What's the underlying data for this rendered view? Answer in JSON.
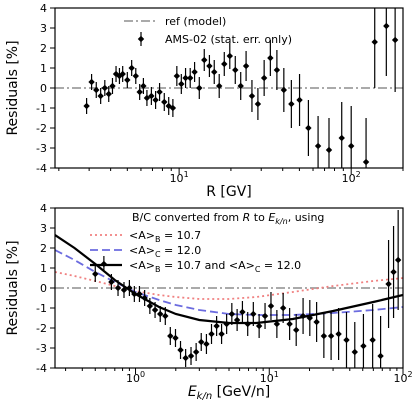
{
  "chart_data": [
    {
      "type": "scatter",
      "xlabel": "R [GV]",
      "ylabel": "Residuals [%]",
      "xscale": "log",
      "xlim": [
        1.9,
        200
      ],
      "ylim": [
        -4,
        4
      ],
      "xticks": [
        {
          "v": 10,
          "label": "10",
          "sup": "1"
        },
        {
          "v": 100,
          "label": "10",
          "sup": "2"
        }
      ],
      "yticks": [
        -4,
        -3,
        -2,
        -1,
        0,
        1,
        2,
        3,
        4
      ],
      "legend_position": "top-center",
      "reference_line": {
        "name": "ref (model)",
        "y": 0,
        "color": "#aaaaaa",
        "style": "dash-dot"
      },
      "series": [
        {
          "name": "AMS-02 (stat. err. only)",
          "color": "#000000",
          "points": [
            [
              2.9,
              -0.9,
              0.4
            ],
            [
              3.1,
              0.3,
              0.4
            ],
            [
              3.3,
              -0.1,
              0.4
            ],
            [
              3.5,
              -0.4,
              0.4
            ],
            [
              3.7,
              0.0,
              0.4
            ],
            [
              3.9,
              -0.3,
              0.4
            ],
            [
              4.1,
              0.1,
              0.4
            ],
            [
              4.3,
              0.7,
              0.4
            ],
            [
              4.5,
              0.6,
              0.4
            ],
            [
              4.7,
              0.7,
              0.4
            ],
            [
              5.0,
              0.4,
              0.4
            ],
            [
              5.3,
              1.0,
              0.4
            ],
            [
              5.6,
              0.6,
              0.4
            ],
            [
              5.9,
              -0.2,
              0.4
            ],
            [
              6.2,
              0.1,
              0.4
            ],
            [
              6.5,
              -0.5,
              0.4
            ],
            [
              6.9,
              -0.4,
              0.45
            ],
            [
              7.3,
              -0.6,
              0.45
            ],
            [
              7.7,
              -0.2,
              0.45
            ],
            [
              8.2,
              -0.7,
              0.45
            ],
            [
              8.7,
              -0.9,
              0.45
            ],
            [
              9.2,
              -1.0,
              0.45
            ],
            [
              9.7,
              0.6,
              0.5
            ],
            [
              10.3,
              0.2,
              0.5
            ],
            [
              10.9,
              0.5,
              0.5
            ],
            [
              11.6,
              0.5,
              0.5
            ],
            [
              12.3,
              0.8,
              0.5
            ],
            [
              13.1,
              0.0,
              0.55
            ],
            [
              14.0,
              1.4,
              0.55
            ],
            [
              15.0,
              1.1,
              0.55
            ],
            [
              16.0,
              0.8,
              0.6
            ],
            [
              17.1,
              0.1,
              0.6
            ],
            [
              18.3,
              1.2,
              0.6
            ],
            [
              19.7,
              1.6,
              0.65
            ],
            [
              21.2,
              0.9,
              0.7
            ],
            [
              22.8,
              0.1,
              0.7
            ],
            [
              24.5,
              1.1,
              0.75
            ],
            [
              26.5,
              -0.4,
              0.8
            ],
            [
              28.7,
              -0.8,
              0.8
            ],
            [
              31.2,
              0.5,
              0.9
            ],
            [
              33.9,
              1.5,
              0.9
            ],
            [
              37.0,
              0.9,
              1.0
            ],
            [
              40.6,
              -0.1,
              1.1
            ],
            [
              44.9,
              -0.8,
              1.2
            ],
            [
              50.1,
              -0.6,
              1.3
            ],
            [
              56.4,
              -2.0,
              1.4
            ],
            [
              64.2,
              -2.9,
              1.5
            ],
            [
              74.3,
              -3.1,
              1.6
            ],
            [
              88.1,
              -2.5,
              1.8
            ],
            [
              100.0,
              -2.9,
              2.0
            ],
            [
              122.0,
              -3.7,
              2.2
            ],
            [
              137.0,
              2.3,
              2.3
            ],
            [
              160.0,
              3.1,
              2.5
            ],
            [
              180.0,
              2.4,
              2.6
            ]
          ]
        }
      ]
    },
    {
      "type": "line",
      "title": "B/C converted from R to E_k/n, using",
      "xlabel": "E_k/n [GeV/n]",
      "ylabel": "Residuals [%]",
      "xscale": "log",
      "xlim": [
        0.25,
        100
      ],
      "ylim": [
        -4,
        4
      ],
      "xticks": [
        {
          "v": 1,
          "label": "10",
          "sup": "0"
        },
        {
          "v": 10,
          "label": "10",
          "sup": "1"
        },
        {
          "v": 100,
          "label": "10",
          "sup": "2"
        }
      ],
      "yticks": [
        -4,
        -3,
        -2,
        -1,
        0,
        1,
        2,
        3,
        4
      ],
      "legend_position": "top-center",
      "reference_line": {
        "y": 0,
        "color": "#aaaaaa",
        "style": "dash-dot"
      },
      "series": [
        {
          "name": "<A>_B = 10.7",
          "color": "#f08080",
          "style": "dotted",
          "points": [
            [
              0.25,
              0.8
            ],
            [
              0.35,
              0.6
            ],
            [
              0.5,
              0.35
            ],
            [
              0.7,
              0.1
            ],
            [
              1.0,
              -0.15
            ],
            [
              1.5,
              -0.35
            ],
            [
              2.0,
              -0.45
            ],
            [
              3.0,
              -0.55
            ],
            [
              5.0,
              -0.55
            ],
            [
              8.0,
              -0.45
            ],
            [
              15.0,
              -0.2
            ],
            [
              30.0,
              0.1
            ],
            [
              60.0,
              0.35
            ],
            [
              100.0,
              0.5
            ]
          ]
        },
        {
          "name": "<A>_C = 12.0",
          "color": "#6b6bdf",
          "style": "dashed",
          "points": [
            [
              0.25,
              1.9
            ],
            [
              0.35,
              1.4
            ],
            [
              0.5,
              0.8
            ],
            [
              0.7,
              0.3
            ],
            [
              1.0,
              -0.2
            ],
            [
              1.5,
              -0.6
            ],
            [
              2.0,
              -0.85
            ],
            [
              3.0,
              -1.1
            ],
            [
              5.0,
              -1.3
            ],
            [
              8.0,
              -1.35
            ],
            [
              15.0,
              -1.35
            ],
            [
              30.0,
              -1.25
            ],
            [
              60.0,
              -1.1
            ],
            [
              100.0,
              -0.95
            ]
          ]
        },
        {
          "name": "<A>_B = 10.7 and <A>_C = 12.0",
          "color": "#000000",
          "style": "solid",
          "points": [
            [
              0.25,
              2.65
            ],
            [
              0.35,
              2.0
            ],
            [
              0.5,
              1.2
            ],
            [
              0.7,
              0.4
            ],
            [
              1.0,
              -0.3
            ],
            [
              1.5,
              -0.95
            ],
            [
              2.0,
              -1.3
            ],
            [
              3.0,
              -1.6
            ],
            [
              5.0,
              -1.75
            ],
            [
              8.0,
              -1.75
            ],
            [
              15.0,
              -1.55
            ],
            [
              30.0,
              -1.15
            ],
            [
              60.0,
              -0.7
            ],
            [
              100.0,
              -0.35
            ]
          ]
        }
      ],
      "points": [
        [
          0.5,
          0.7,
          0.4
        ],
        [
          0.58,
          1.2,
          0.4
        ],
        [
          0.66,
          0.3,
          0.4
        ],
        [
          0.74,
          0.0,
          0.4
        ],
        [
          0.82,
          -0.1,
          0.4
        ],
        [
          0.9,
          0.0,
          0.4
        ],
        [
          0.98,
          -0.3,
          0.4
        ],
        [
          1.07,
          -0.3,
          0.4
        ],
        [
          1.17,
          -0.5,
          0.4
        ],
        [
          1.28,
          -0.9,
          0.4
        ],
        [
          1.4,
          -1.1,
          0.4
        ],
        [
          1.53,
          -1.3,
          0.4
        ],
        [
          1.67,
          -1.4,
          0.45
        ],
        [
          1.82,
          -2.4,
          0.45
        ],
        [
          1.99,
          -2.5,
          0.45
        ],
        [
          2.17,
          -3.1,
          0.45
        ],
        [
          2.37,
          -3.5,
          0.45
        ],
        [
          2.6,
          -3.4,
          0.45
        ],
        [
          2.84,
          -3.2,
          0.45
        ],
        [
          3.1,
          -2.7,
          0.45
        ],
        [
          3.39,
          -2.8,
          0.5
        ],
        [
          3.7,
          -2.3,
          0.5
        ],
        [
          4.04,
          -1.9,
          0.5
        ],
        [
          4.4,
          -2.3,
          0.5
        ],
        [
          4.8,
          -1.8,
          0.5
        ],
        [
          5.25,
          -1.3,
          0.55
        ],
        [
          5.75,
          -1.6,
          0.55
        ],
        [
          6.3,
          -1.2,
          0.55
        ],
        [
          6.9,
          -1.8,
          0.6
        ],
        [
          7.6,
          -1.3,
          0.6
        ],
        [
          8.4,
          -1.9,
          0.6
        ],
        [
          9.3,
          -1.4,
          0.65
        ],
        [
          10.3,
          -0.9,
          0.7
        ],
        [
          11.4,
          -1.8,
          0.7
        ],
        [
          12.7,
          -1.0,
          0.75
        ],
        [
          14.2,
          -1.8,
          0.8
        ],
        [
          15.9,
          -2.1,
          0.8
        ],
        [
          17.9,
          -1.4,
          0.9
        ],
        [
          20.1,
          -1.5,
          0.9
        ],
        [
          22.6,
          -1.7,
          1.0
        ],
        [
          25.6,
          -2.4,
          1.1
        ],
        [
          29.0,
          -2.4,
          1.2
        ],
        [
          33.0,
          -2.3,
          1.3
        ],
        [
          37.8,
          -2.6,
          1.4
        ],
        [
          43.6,
          -3.2,
          1.5
        ],
        [
          50.6,
          -2.9,
          1.6
        ],
        [
          59.3,
          -2.6,
          1.8
        ],
        [
          68.0,
          -3.4,
          2.0
        ],
        [
          78.0,
          0.2,
          2.2
        ],
        [
          85.0,
          0.8,
          2.3
        ],
        [
          92.0,
          1.4,
          2.5
        ]
      ]
    }
  ]
}
